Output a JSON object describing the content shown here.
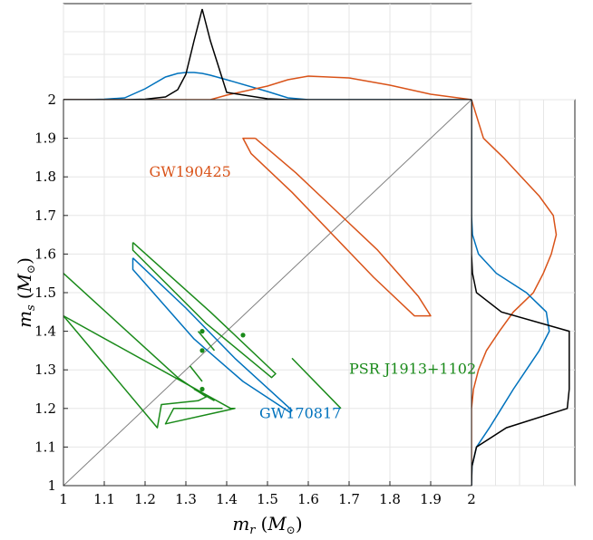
{
  "chart_data": {
    "type": "line",
    "xlabel": "m_r (M_⊙)",
    "ylabel": "m_s (M_⊙)",
    "xlabel_parts": {
      "var": "m",
      "sub": "r",
      "unit": "M",
      "unit_sub": "⊙"
    },
    "ylabel_parts": {
      "var": "m",
      "sub": "s",
      "unit": "M",
      "unit_sub": "⊙"
    },
    "xlim": [
      1,
      2
    ],
    "ylim": [
      1,
      2
    ],
    "x_ticks": [
      "1",
      "1.1",
      "1.2",
      "1.3",
      "1.4",
      "1.5",
      "1.6",
      "1.7",
      "1.8",
      "1.9",
      "2"
    ],
    "y_ticks": [
      "1",
      "1.1",
      "1.2",
      "1.3",
      "1.4",
      "1.5",
      "1.6",
      "1.7",
      "1.8",
      "1.9",
      "2"
    ],
    "grid": true,
    "colors": {
      "GW190425": "#d95319",
      "GW170817": "#0072bd",
      "PSR J1913+1102": "#1a8a1a",
      "prior": "#000000",
      "diagonal": "#808080"
    },
    "annotations": [
      {
        "text": "GW190425",
        "color": "#d95319",
        "x": 1.21,
        "y": 1.8
      },
      {
        "text": "GW170817",
        "color": "#0072bd",
        "x": 1.48,
        "y": 1.175
      },
      {
        "text": "PSR J1913+1102",
        "color": "#1a8a1a",
        "x": 1.7,
        "y": 1.29
      }
    ],
    "diagonal": {
      "x": [
        1,
        2
      ],
      "y": [
        1,
        2
      ]
    },
    "contours": {
      "GW190425": {
        "x": [
          1.47,
          1.57,
          1.67,
          1.77,
          1.87,
          1.9,
          1.86,
          1.76,
          1.66,
          1.56,
          1.46,
          1.44,
          1.47
        ],
        "y": [
          1.9,
          1.81,
          1.71,
          1.61,
          1.49,
          1.44,
          1.44,
          1.54,
          1.65,
          1.76,
          1.86,
          1.9,
          1.9
        ]
      },
      "GW170817": {
        "x": [
          1.17,
          1.3,
          1.42,
          1.56,
          1.555,
          1.44,
          1.32,
          1.17,
          1.17
        ],
        "y": [
          1.59,
          1.46,
          1.33,
          1.195,
          1.19,
          1.27,
          1.38,
          1.56,
          1.59
        ]
      },
      "PSR J1913+1102": [
        {
          "x": [
            1.17,
            1.36,
            1.52,
            1.51,
            1.35,
            1.17,
            1.17
          ],
          "y": [
            1.63,
            1.45,
            1.29,
            1.28,
            1.42,
            1.61,
            1.63
          ]
        },
        {
          "x": [
            1.0,
            1.28,
            1.35,
            1.33,
            1.24,
            1.23,
            1.0
          ],
          "y": [
            1.55,
            1.28,
            1.23,
            1.22,
            1.21,
            1.15,
            1.44
          ]
        },
        {
          "x": [
            1.39,
            1.27,
            1.25,
            1.42,
            1.41,
            1.0
          ],
          "y": [
            1.2,
            1.2,
            1.16,
            1.2,
            1.2,
            1.44
          ]
        },
        {
          "x": [
            1.56,
            1.68
          ],
          "y": [
            1.33,
            1.2
          ]
        },
        {
          "x": [
            1.31,
            1.34
          ],
          "y": [
            1.31,
            1.27
          ]
        },
        {
          "x": [
            1.33,
            1.37
          ],
          "y": [
            1.4,
            1.35
          ]
        },
        {
          "x": [
            1.32,
            1.37
          ],
          "y": [
            1.25,
            1.22
          ]
        }
      ]
    },
    "points": {
      "PSR J1913+1102": {
        "x": [
          1.34,
          1.44,
          1.34,
          1.34
        ],
        "y": [
          1.4,
          1.39,
          1.35,
          1.25
        ]
      }
    },
    "marginals": {
      "top": {
        "x": [
          1.0,
          1.05,
          1.1,
          1.15,
          1.2,
          1.25,
          1.28,
          1.3,
          1.32,
          1.34,
          1.36,
          1.4,
          1.5,
          1.55,
          1.6,
          1.7,
          1.8,
          1.9,
          2.0
        ],
        "GW170817": [
          0,
          0,
          0.005,
          0.02,
          0.12,
          0.25,
          0.29,
          0.3,
          0.3,
          0.29,
          0.27,
          0.22,
          0.09,
          0.02,
          0,
          0,
          0,
          0,
          0
        ],
        "GW190425": [
          0,
          0,
          0,
          0,
          0,
          0,
          0,
          0,
          0,
          0,
          0,
          0.05,
          0.15,
          0.22,
          0.26,
          0.24,
          0.16,
          0.06,
          0
        ],
        "prior": [
          0,
          0,
          0,
          0,
          0.005,
          0.03,
          0.11,
          0.28,
          0.65,
          1.0,
          0.65,
          0.08,
          0.01,
          0,
          0,
          0,
          0,
          0,
          0
        ]
      },
      "right": {
        "y": [
          1.0,
          1.05,
          1.1,
          1.15,
          1.2,
          1.25,
          1.3,
          1.35,
          1.4,
          1.45,
          1.5,
          1.55,
          1.6,
          1.65,
          1.7,
          1.75,
          1.8,
          1.85,
          1.9,
          2.0
        ],
        "GW170817": [
          0,
          0.005,
          0.05,
          0.18,
          0.3,
          0.42,
          0.55,
          0.68,
          0.78,
          0.75,
          0.55,
          0.25,
          0.07,
          0.01,
          0,
          0,
          0,
          0,
          0,
          0
        ],
        "GW190425": [
          0,
          0,
          0,
          0,
          0,
          0.02,
          0.07,
          0.15,
          0.28,
          0.42,
          0.62,
          0.72,
          0.8,
          0.85,
          0.82,
          0.68,
          0.5,
          0.32,
          0.12,
          0
        ],
        "prior": [
          0,
          0.005,
          0.05,
          0.35,
          0.96,
          0.98,
          0.98,
          0.98,
          0.98,
          0.3,
          0.05,
          0.01,
          0,
          0,
          0,
          0,
          0,
          0,
          0,
          0
        ]
      }
    }
  }
}
